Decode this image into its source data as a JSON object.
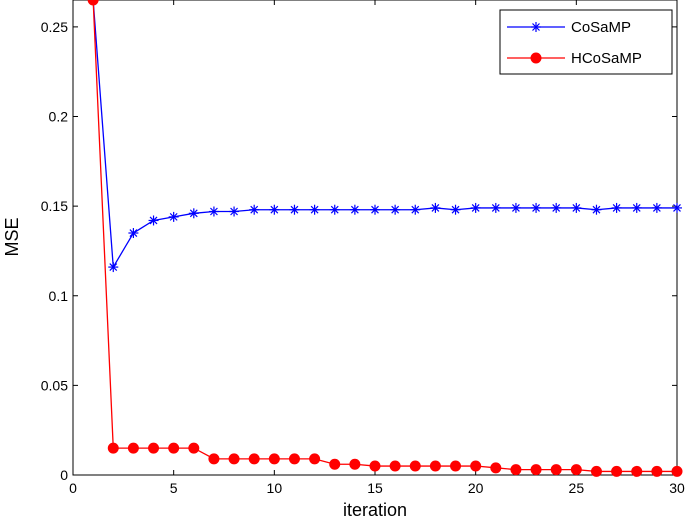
{
  "chart_data": {
    "type": "line",
    "xlabel": "iteration",
    "ylabel": "MSE",
    "xlim": [
      0,
      30
    ],
    "ylim": [
      0,
      0.265
    ],
    "xticks": [
      0,
      5,
      10,
      15,
      20,
      25,
      30
    ],
    "xtick_labels": [
      "0",
      "5",
      "10",
      "15",
      "20",
      "25",
      "30"
    ],
    "yticks": [
      0,
      0.05,
      0.1,
      0.15,
      0.2,
      0.25
    ],
    "ytick_labels": [
      "0",
      "0.05",
      "0.1",
      "0.15",
      "0.2",
      "0.25"
    ],
    "grid": false,
    "legend_position": "top-right",
    "x": [
      1,
      2,
      3,
      4,
      5,
      6,
      7,
      8,
      9,
      10,
      11,
      12,
      13,
      14,
      15,
      16,
      17,
      18,
      19,
      20,
      21,
      22,
      23,
      24,
      25,
      26,
      27,
      28,
      29,
      30
    ],
    "series": [
      {
        "name": "CoSaMP",
        "color": "#0000ff",
        "marker": "asterisk",
        "values": [
          0.265,
          0.116,
          0.135,
          0.142,
          0.144,
          0.146,
          0.147,
          0.147,
          0.148,
          0.148,
          0.148,
          0.148,
          0.148,
          0.148,
          0.148,
          0.148,
          0.148,
          0.149,
          0.148,
          0.149,
          0.149,
          0.149,
          0.149,
          0.149,
          0.149,
          0.148,
          0.149,
          0.149,
          0.149,
          0.149
        ]
      },
      {
        "name": "HCoSaMP",
        "color": "#ff0000",
        "marker": "filled-circle",
        "values": [
          0.265,
          0.015,
          0.015,
          0.015,
          0.015,
          0.015,
          0.009,
          0.009,
          0.009,
          0.009,
          0.009,
          0.009,
          0.006,
          0.006,
          0.005,
          0.005,
          0.005,
          0.005,
          0.005,
          0.005,
          0.004,
          0.003,
          0.003,
          0.003,
          0.003,
          0.002,
          0.002,
          0.002,
          0.002,
          0.002
        ]
      }
    ]
  }
}
